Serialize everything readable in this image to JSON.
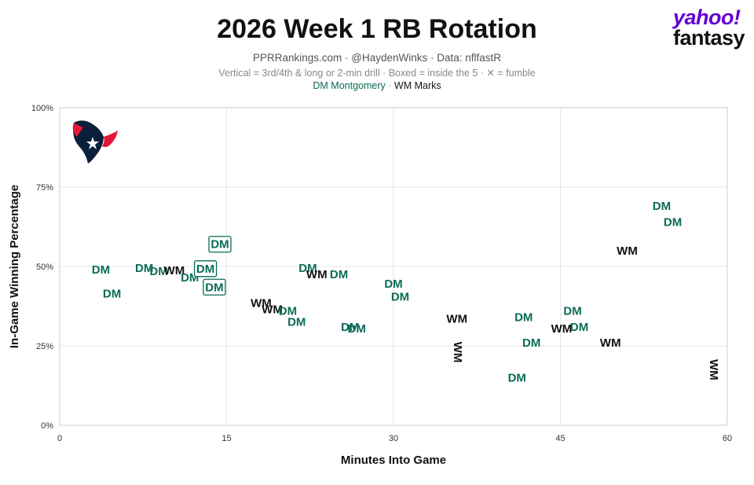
{
  "header": {
    "title": "2026 Week 1 RB Rotation",
    "subtitle": "PPRRankings.com · @HaydenWinks · Data: nflfastR",
    "note": "Vertical = 3rd/4th & long or 2-min drill · Boxed = inside the 5 · ✕ = fumble",
    "legend_dm": "DM Montgomery",
    "legend_sep": " · ",
    "legend_wm": "WM Marks"
  },
  "brand": {
    "line1": "yahoo!",
    "line2": "fantasy"
  },
  "colors": {
    "DM": "#0b6b57",
    "WM": "#111111",
    "grid": "#e6e6e6",
    "frame": "#cccccc"
  },
  "chart_data": {
    "type": "scatter",
    "title": "2026 Week 1 RB Rotation",
    "xlabel": "Minutes Into Game",
    "ylabel": "In-Game Winning Percentage",
    "xlim": [
      0,
      60
    ],
    "ylim": [
      0,
      100
    ],
    "xticks": [
      0,
      15,
      30,
      45,
      60
    ],
    "yticks": [
      0,
      25,
      50,
      75,
      100
    ],
    "xtick_labels": [
      "0",
      "15",
      "30",
      "45",
      "60"
    ],
    "ytick_labels": [
      "0%",
      "25%",
      "50%",
      "75%",
      "100%"
    ],
    "grid": true,
    "team_logo": "houston-texans-logo",
    "points": [
      {
        "x": 3.7,
        "y": 49,
        "label": "DM",
        "player": "DM",
        "vertical": false,
        "boxed": false
      },
      {
        "x": 4.7,
        "y": 41.5,
        "label": "DM",
        "player": "DM",
        "vertical": false,
        "boxed": false
      },
      {
        "x": 7.6,
        "y": 49.5,
        "label": "DM",
        "player": "DM",
        "vertical": false,
        "boxed": false
      },
      {
        "x": 8.9,
        "y": 48.5,
        "label": "DM",
        "player": "DM",
        "vertical": false,
        "boxed": false
      },
      {
        "x": 10.3,
        "y": 48.8,
        "label": "WM",
        "player": "WM",
        "vertical": false,
        "boxed": false
      },
      {
        "x": 11.7,
        "y": 46.5,
        "label": "DM",
        "player": "DM",
        "vertical": false,
        "boxed": false
      },
      {
        "x": 13.1,
        "y": 49.3,
        "label": "DM",
        "player": "DM",
        "vertical": false,
        "boxed": true
      },
      {
        "x": 13.9,
        "y": 43.5,
        "label": "DM",
        "player": "DM",
        "vertical": false,
        "boxed": true
      },
      {
        "x": 14.4,
        "y": 57,
        "label": "DM",
        "player": "DM",
        "vertical": false,
        "boxed": true
      },
      {
        "x": 18.1,
        "y": 38.5,
        "label": "WM",
        "player": "WM",
        "vertical": false,
        "boxed": false
      },
      {
        "x": 19.1,
        "y": 36.5,
        "label": "WM",
        "player": "WM",
        "vertical": false,
        "boxed": false
      },
      {
        "x": 20.5,
        "y": 36,
        "label": "DM",
        "player": "DM",
        "vertical": false,
        "boxed": false
      },
      {
        "x": 21.3,
        "y": 32.5,
        "label": "DM",
        "player": "DM",
        "vertical": false,
        "boxed": false
      },
      {
        "x": 22.3,
        "y": 49.5,
        "label": "DM",
        "player": "DM",
        "vertical": false,
        "boxed": false
      },
      {
        "x": 23.1,
        "y": 47.5,
        "label": "WM",
        "player": "WM",
        "vertical": false,
        "boxed": false
      },
      {
        "x": 25.1,
        "y": 47.5,
        "label": "DM",
        "player": "DM",
        "vertical": false,
        "boxed": false
      },
      {
        "x": 26.1,
        "y": 31,
        "label": "DM",
        "player": "DM",
        "vertical": false,
        "boxed": false
      },
      {
        "x": 26.7,
        "y": 30.5,
        "label": "DM",
        "player": "DM",
        "vertical": false,
        "boxed": false
      },
      {
        "x": 30,
        "y": 44.5,
        "label": "DM",
        "player": "DM",
        "vertical": false,
        "boxed": false
      },
      {
        "x": 30.6,
        "y": 40.5,
        "label": "DM",
        "player": "DM",
        "vertical": false,
        "boxed": false
      },
      {
        "x": 35.7,
        "y": 33.5,
        "label": "WM",
        "player": "WM",
        "vertical": false,
        "boxed": false
      },
      {
        "x": 35.8,
        "y": 23,
        "label": "WM",
        "player": "WM",
        "vertical": true,
        "boxed": false
      },
      {
        "x": 41.1,
        "y": 15,
        "label": "DM",
        "player": "DM",
        "vertical": false,
        "boxed": false
      },
      {
        "x": 41.7,
        "y": 34,
        "label": "DM",
        "player": "DM",
        "vertical": false,
        "boxed": false
      },
      {
        "x": 42.4,
        "y": 26,
        "label": "DM",
        "player": "DM",
        "vertical": false,
        "boxed": false
      },
      {
        "x": 45.1,
        "y": 30.5,
        "label": "WM",
        "player": "WM",
        "vertical": false,
        "boxed": false
      },
      {
        "x": 46.1,
        "y": 36,
        "label": "DM",
        "player": "DM",
        "vertical": false,
        "boxed": false
      },
      {
        "x": 46.7,
        "y": 31,
        "label": "DM",
        "player": "DM",
        "vertical": false,
        "boxed": false
      },
      {
        "x": 49.5,
        "y": 26,
        "label": "WM",
        "player": "WM",
        "vertical": false,
        "boxed": false
      },
      {
        "x": 51,
        "y": 55,
        "label": "WM",
        "player": "WM",
        "vertical": false,
        "boxed": false
      },
      {
        "x": 54.1,
        "y": 69,
        "label": "DM",
        "player": "DM",
        "vertical": false,
        "boxed": false
      },
      {
        "x": 55.1,
        "y": 64,
        "label": "DM",
        "player": "DM",
        "vertical": false,
        "boxed": false
      },
      {
        "x": 58.8,
        "y": 17.5,
        "label": "WM",
        "player": "WM",
        "vertical": true,
        "boxed": false
      }
    ]
  }
}
